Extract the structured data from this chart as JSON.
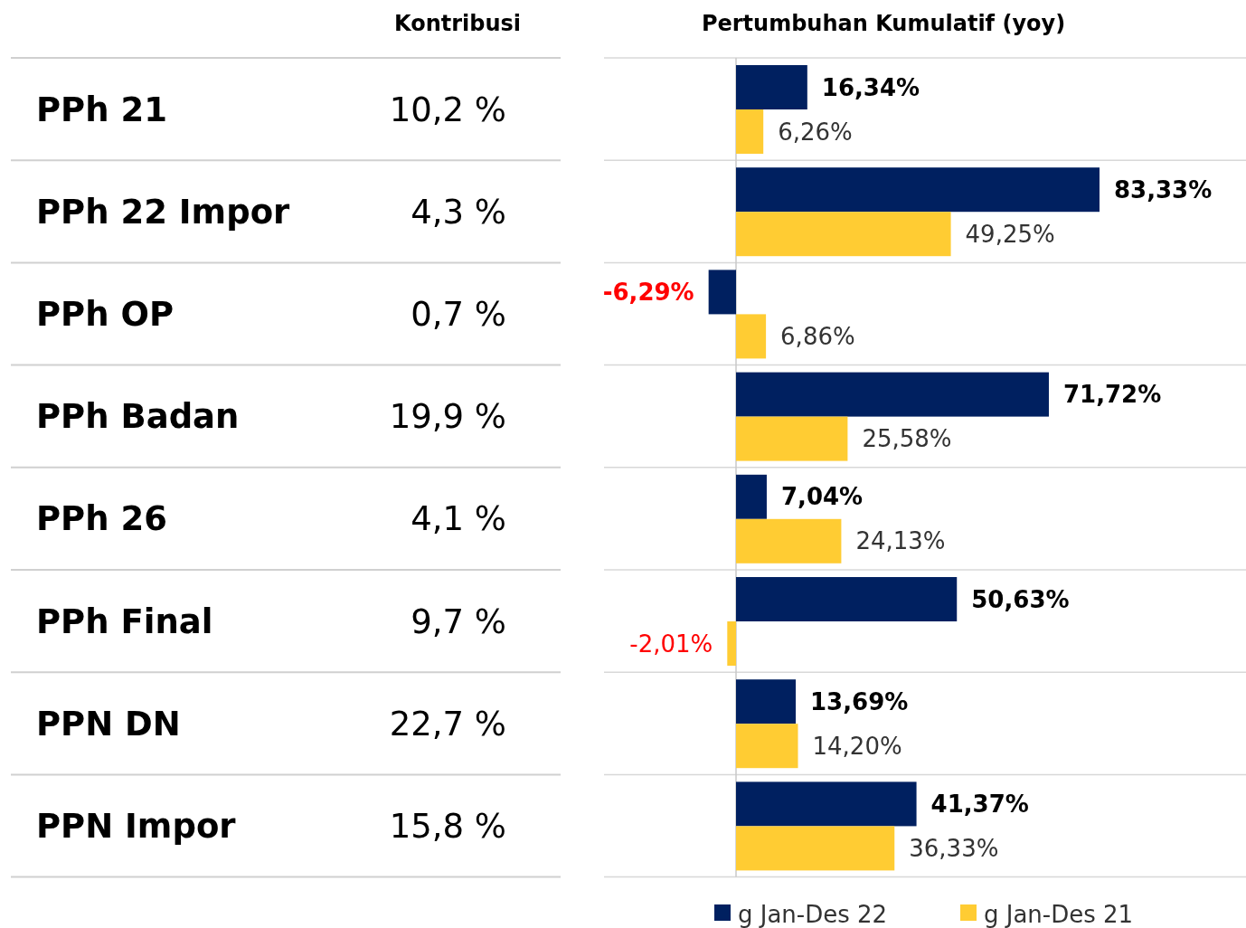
{
  "chart_data": [
    {
      "type": "other",
      "title": "Kontribusi",
      "annotations": [
        "10,2 %",
        "4,3 %",
        "0,7 %",
        "19,9 %",
        "4,1 %",
        "9,7 %",
        "22,7 %",
        "15,8 %"
      ]
    },
    {
      "type": "bar",
      "orientation": "horizontal",
      "title": "Pertumbuhan Kumulatif (yoy)",
      "categories": [
        "PPh 21",
        "PPh 22 Impor",
        "PPh OP",
        "PPh Badan",
        "PPh 26",
        "PPh Final",
        "PPN DN",
        "PPN Impor"
      ],
      "legend": "bottom",
      "series": [
        {
          "name": "g Jan-Des 22",
          "color": "#002060",
          "values": [
            16.34,
            83.33,
            -6.29,
            71.72,
            7.04,
            50.63,
            13.69,
            41.37
          ],
          "value_labels": [
            "16,34%",
            "83,33%",
            "-6,29%",
            "71,72%",
            "7,04%",
            "50,63%",
            "13,69%",
            "41,37%"
          ]
        },
        {
          "name": "g Jan-Des 21",
          "color": "#ffcc33",
          "values": [
            6.26,
            49.25,
            6.86,
            25.58,
            24.13,
            -2.01,
            14.2,
            36.33
          ],
          "value_labels": [
            "6,26%",
            "49,25%",
            "6,86%",
            "25,58%",
            "24,13%",
            "-2,01%",
            "14,20%",
            "36,33%"
          ]
        }
      ]
    }
  ]
}
